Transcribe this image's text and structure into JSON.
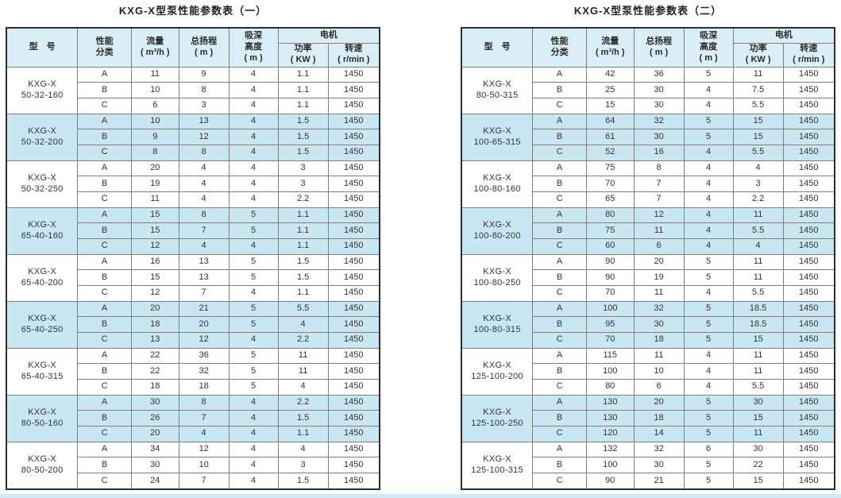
{
  "colors": {
    "highlight_row": "#c9e6f3",
    "header_background": "#d9eef7",
    "grid_line": "#7f7f7f",
    "outer_border": "#2e2e2e",
    "bottom_strip": "#d3ebf6"
  },
  "tables": [
    {
      "title": "KXG-X型泵性能参数表（一）",
      "headers": {
        "model": "型　号",
        "perf": "性能\n分类",
        "flow": "流量\n( m³/h )",
        "head": "总扬程\n( m )",
        "suction": "吸深\n高度\n( m )",
        "motor": "电机",
        "power": "功率\n( KW )",
        "speed": "转速\n( r/min )"
      },
      "groups": [
        {
          "model": "KXG-X\n50-32-160",
          "highlight": false,
          "rows": [
            [
              "A",
              "11",
              "9",
              "4",
              "1.1",
              "1450"
            ],
            [
              "B",
              "10",
              "8",
              "4",
              "1.1",
              "1450"
            ],
            [
              "C",
              "6",
              "3",
              "4",
              "1.1",
              "1450"
            ]
          ]
        },
        {
          "model": "KXG-X\n50-32-200",
          "highlight": true,
          "rows": [
            [
              "A",
              "10",
              "13",
              "4",
              "1.5",
              "1450"
            ],
            [
              "B",
              "9",
              "12",
              "4",
              "1.5",
              "1450"
            ],
            [
              "C",
              "8",
              "8",
              "4",
              "1.5",
              "1450"
            ]
          ]
        },
        {
          "model": "KXG-X\n50-32-250",
          "highlight": false,
          "rows": [
            [
              "A",
              "20",
              "4",
              "4",
              "3",
              "1450"
            ],
            [
              "B",
              "19",
              "4",
              "4",
              "3",
              "1450"
            ],
            [
              "C",
              "11",
              "4",
              "4",
              "2.2",
              "1450"
            ]
          ]
        },
        {
          "model": "KXG-X\n65-40-160",
          "highlight": true,
          "rows": [
            [
              "A",
              "15",
              "8",
              "5",
              "1.1",
              "1450"
            ],
            [
              "B",
              "15",
              "7",
              "5",
              "1.1",
              "1450"
            ],
            [
              "C",
              "12",
              "4",
              "4",
              "1.1",
              "1450"
            ]
          ]
        },
        {
          "model": "KXG-X\n65-40-200",
          "highlight": false,
          "rows": [
            [
              "A",
              "16",
              "13",
              "5",
              "1.5",
              "1450"
            ],
            [
              "B",
              "15",
              "13",
              "5",
              "1.5",
              "1450"
            ],
            [
              "C",
              "12",
              "7",
              "4",
              "1.1",
              "1450"
            ]
          ]
        },
        {
          "model": "KXG-X\n65-40-250",
          "highlight": true,
          "rows": [
            [
              "A",
              "20",
              "21",
              "5",
              "5.5",
              "1450"
            ],
            [
              "B",
              "18",
              "20",
              "5",
              "4",
              "1450"
            ],
            [
              "C",
              "13",
              "12",
              "4",
              "2.2",
              "1450"
            ]
          ]
        },
        {
          "model": "KXG-X\n65-40-315",
          "highlight": false,
          "rows": [
            [
              "A",
              "22",
              "36",
              "5",
              "11",
              "1450"
            ],
            [
              "B",
              "22",
              "32",
              "5",
              "11",
              "1450"
            ],
            [
              "C",
              "18",
              "18",
              "5",
              "4",
              "1450"
            ]
          ]
        },
        {
          "model": "KXG-X\n80-50-160",
          "highlight": true,
          "rows": [
            [
              "A",
              "30",
              "8",
              "4",
              "2.2",
              "1450"
            ],
            [
              "B",
              "26",
              "7",
              "4",
              "1.5",
              "1450"
            ],
            [
              "C",
              "20",
              "4",
              "4",
              "1.1",
              "1450"
            ]
          ]
        },
        {
          "model": "KXG-X\n80-50-200",
          "highlight": false,
          "rows": [
            [
              "A",
              "34",
              "12",
              "4",
              "4",
              "1450"
            ],
            [
              "B",
              "30",
              "10",
              "4",
              "3",
              "1450"
            ],
            [
              "C",
              "24",
              "7",
              "4",
              "1.5",
              "1450"
            ]
          ]
        }
      ]
    },
    {
      "title": "KXG-X型泵性能参数表（二）",
      "headers": {
        "model": "型　号",
        "perf": "性能\n分类",
        "flow": "流量\n( m³/h )",
        "head": "总扬程\n( m )",
        "suction": "吸深\n高度\n( m )",
        "motor": "电机",
        "power": "功率\n( KW )",
        "speed": "转速\n( r/min )"
      },
      "groups": [
        {
          "model": "KXG-X\n80-50-315",
          "highlight": false,
          "rows": [
            [
              "A",
              "42",
              "36",
              "5",
              "11",
              "1450"
            ],
            [
              "B",
              "25",
              "30",
              "4",
              "7.5",
              "1450"
            ],
            [
              "C",
              "15",
              "30",
              "4",
              "5.5",
              "1450"
            ]
          ]
        },
        {
          "model": "KXG-X\n100-65-315",
          "highlight": true,
          "rows": [
            [
              "A",
              "64",
              "32",
              "5",
              "15",
              "1450"
            ],
            [
              "B",
              "61",
              "30",
              "5",
              "15",
              "1450"
            ],
            [
              "C",
              "52",
              "16",
              "4",
              "5.5",
              "1450"
            ]
          ]
        },
        {
          "model": "KXG-X\n100-80-160",
          "highlight": false,
          "rows": [
            [
              "A",
              "75",
              "8",
              "4",
              "4",
              "1450"
            ],
            [
              "B",
              "70",
              "7",
              "4",
              "3",
              "1450"
            ],
            [
              "C",
              "65",
              "7",
              "4",
              "2.2",
              "1450"
            ]
          ]
        },
        {
          "model": "KXG-X\n100-80-200",
          "highlight": true,
          "rows": [
            [
              "A",
              "80",
              "12",
              "4",
              "11",
              "1450"
            ],
            [
              "B",
              "75",
              "11",
              "4",
              "5.5",
              "1450"
            ],
            [
              "C",
              "60",
              "6",
              "4",
              "4",
              "1450"
            ]
          ]
        },
        {
          "model": "KXG-X\n100-80-250",
          "highlight": false,
          "rows": [
            [
              "A",
              "90",
              "20",
              "5",
              "11",
              "1450"
            ],
            [
              "B",
              "90",
              "19",
              "5",
              "11",
              "1450"
            ],
            [
              "C",
              "70",
              "11",
              "4",
              "5.5",
              "1450"
            ]
          ]
        },
        {
          "model": "KXG-X\n100-80-315",
          "highlight": true,
          "rows": [
            [
              "A",
              "100",
              "32",
              "5",
              "18.5",
              "1450"
            ],
            [
              "B",
              "95",
              "30",
              "5",
              "18.5",
              "1450"
            ],
            [
              "C",
              "70",
              "18",
              "5",
              "15",
              "1450"
            ]
          ]
        },
        {
          "model": "KXG-X\n125-100-200",
          "highlight": false,
          "rows": [
            [
              "A",
              "115",
              "11",
              "4",
              "11",
              "1450"
            ],
            [
              "B",
              "100",
              "10",
              "4",
              "11",
              "1450"
            ],
            [
              "C",
              "80",
              "6",
              "4",
              "5.5",
              "1450"
            ]
          ]
        },
        {
          "model": "KXG-X\n125-100-250",
          "highlight": true,
          "rows": [
            [
              "A",
              "130",
              "20",
              "5",
              "30",
              "1450"
            ],
            [
              "B",
              "130",
              "18",
              "5",
              "15",
              "1450"
            ],
            [
              "C",
              "120",
              "14",
              "5",
              "11",
              "1450"
            ]
          ]
        },
        {
          "model": "KXG-X\n125-100-315",
          "highlight": false,
          "rows": [
            [
              "A",
              "132",
              "32",
              "6",
              "30",
              "1450"
            ],
            [
              "B",
              "100",
              "30",
              "5",
              "22",
              "1450"
            ],
            [
              "C",
              "90",
              "21",
              "5",
              "15",
              "1450"
            ]
          ]
        }
      ]
    }
  ]
}
